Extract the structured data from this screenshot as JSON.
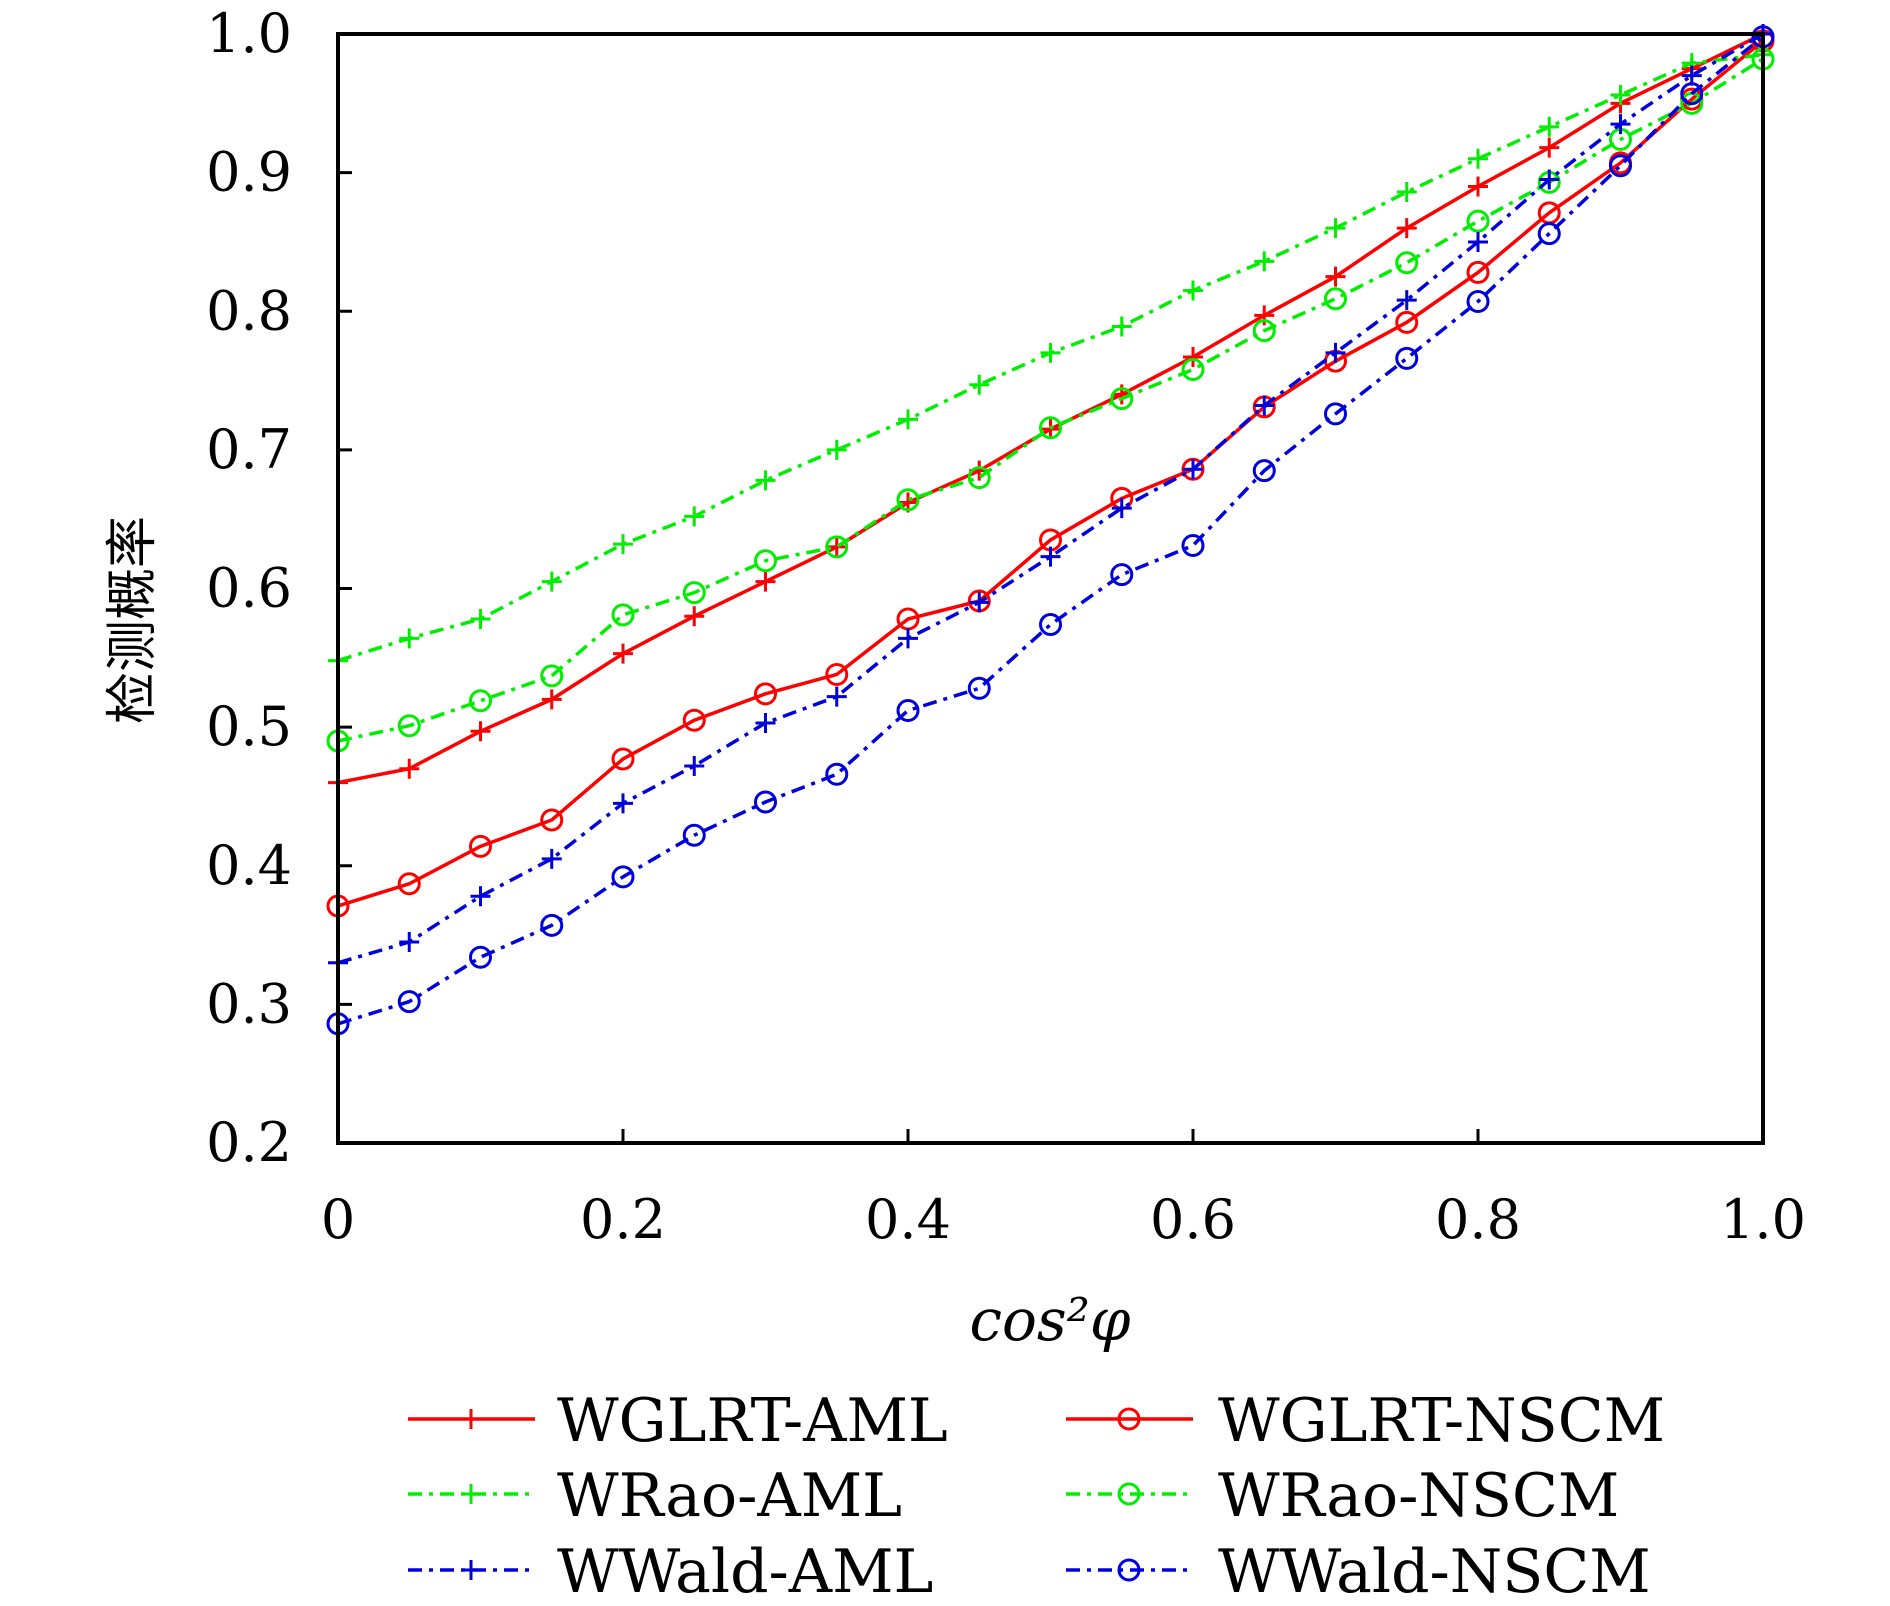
{
  "chart_data": {
    "type": "line",
    "title": "",
    "xlabel": "cos²φ",
    "ylabel": "检测概率",
    "xlim": [
      0,
      1.0
    ],
    "ylim": [
      0.2,
      1.0
    ],
    "xticks": [
      "0",
      "0.2",
      "0.4",
      "0.6",
      "0.8",
      "1.0"
    ],
    "yticks": [
      "0.2",
      "0.3",
      "0.4",
      "0.5",
      "0.6",
      "0.7",
      "0.8",
      "0.9",
      "1.0"
    ],
    "grid": false,
    "legend_position": "bottom",
    "x": [
      0,
      0.05,
      0.1,
      0.15,
      0.2,
      0.25,
      0.3,
      0.35,
      0.4,
      0.45,
      0.5,
      0.55,
      0.6,
      0.65,
      0.7,
      0.75,
      0.8,
      0.85,
      0.9,
      0.95,
      1.0
    ],
    "series": [
      {
        "name": "WGLRT-AML",
        "color": "#ff0000",
        "dash": "solid",
        "marker": "plus",
        "values": [
          0.46,
          0.47,
          0.497,
          0.52,
          0.553,
          0.58,
          0.605,
          0.63,
          0.662,
          0.685,
          0.715,
          0.74,
          0.767,
          0.797,
          0.825,
          0.86,
          0.89,
          0.918,
          0.95,
          0.975,
          1.0
        ]
      },
      {
        "name": "WGLRT-NSCM",
        "color": "#ff0000",
        "dash": "solid",
        "marker": "circle",
        "values": [
          0.371,
          0.387,
          0.414,
          0.433,
          0.477,
          0.505,
          0.524,
          0.538,
          0.578,
          0.591,
          0.635,
          0.665,
          0.686,
          0.731,
          0.764,
          0.792,
          0.828,
          0.871,
          0.907,
          0.953,
          0.995
        ]
      },
      {
        "name": "WRao-AML",
        "color": "#00ee00",
        "dash": "dashdot",
        "marker": "plus",
        "values": [
          0.548,
          0.564,
          0.578,
          0.605,
          0.632,
          0.652,
          0.678,
          0.7,
          0.722,
          0.747,
          0.77,
          0.789,
          0.815,
          0.836,
          0.86,
          0.886,
          0.91,
          0.933,
          0.956,
          0.979,
          0.985
        ]
      },
      {
        "name": "WRao-NSCM",
        "color": "#00ee00",
        "dash": "dashdot",
        "marker": "circle",
        "values": [
          0.49,
          0.501,
          0.519,
          0.537,
          0.581,
          0.597,
          0.62,
          0.63,
          0.664,
          0.68,
          0.716,
          0.737,
          0.758,
          0.786,
          0.809,
          0.835,
          0.865,
          0.893,
          0.924,
          0.95,
          0.982
        ]
      },
      {
        "name": "WWald-AML",
        "color": "#0000dd",
        "dash": "dashdot",
        "marker": "plus",
        "values": [
          0.33,
          0.345,
          0.378,
          0.405,
          0.445,
          0.472,
          0.503,
          0.522,
          0.564,
          0.59,
          0.623,
          0.658,
          0.686,
          0.732,
          0.77,
          0.808,
          0.85,
          0.895,
          0.935,
          0.97,
          1.0
        ]
      },
      {
        "name": "WWald-NSCM",
        "color": "#0000dd",
        "dash": "dashdot",
        "marker": "circle",
        "values": [
          0.286,
          0.302,
          0.334,
          0.357,
          0.392,
          0.422,
          0.446,
          0.466,
          0.512,
          0.528,
          0.574,
          0.61,
          0.631,
          0.685,
          0.726,
          0.766,
          0.807,
          0.856,
          0.905,
          0.957,
          0.998
        ]
      }
    ]
  }
}
